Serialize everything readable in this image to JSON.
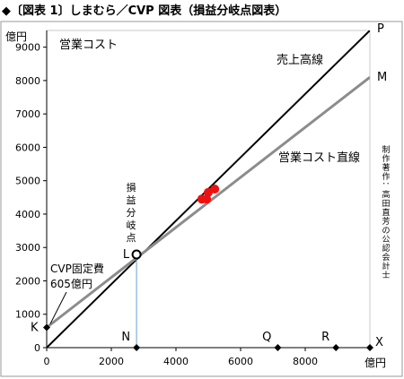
{
  "figure_title": "◆〔図表 1〕しまむら／CVP 図表（損益分岐点図表）",
  "chart_data": {
    "type": "line",
    "x_unit": "億円",
    "y_unit": "億円",
    "xlim": [
      0,
      10000
    ],
    "ylim": [
      0,
      9500
    ],
    "x_ticks": [
      0,
      2000,
      4000,
      6000,
      8000
    ],
    "y_ticks": [
      0,
      1000,
      2000,
      3000,
      4000,
      5000,
      6000,
      7000,
      8000,
      9000
    ],
    "grid": false,
    "series": [
      {
        "name": "売上高線",
        "color": "#000000",
        "x": [
          0,
          10000
        ],
        "y": [
          0,
          9500
        ]
      },
      {
        "name": "営業コスト直線",
        "color": "#8c8c8c",
        "x": [
          0,
          10000
        ],
        "y": [
          605,
          8100
        ]
      }
    ],
    "highlight_points": {
      "color": "#ee1111",
      "x": [
        4800,
        4950,
        5000,
        5200
      ],
      "y": [
        4450,
        4450,
        4650,
        4750
      ]
    },
    "break_even": {
      "x": 2780,
      "y": 2790,
      "label": "L",
      "vertical_label": "損益分岐点",
      "line_color": "#6a9fcf"
    },
    "x_markers": [
      {
        "label": "N",
        "x": 2780
      },
      {
        "label": "Q",
        "x": 7150
      },
      {
        "label": "R",
        "x": 8950
      }
    ],
    "point_labels": [
      {
        "label": "P",
        "x": 10000,
        "y": 9500
      },
      {
        "label": "M",
        "x": 10000,
        "y": 8100
      },
      {
        "label": "K",
        "x": 0,
        "y": 605
      },
      {
        "label": "X",
        "x": 10000,
        "y": 0
      }
    ],
    "annotations": {
      "operating_cost": "営業コスト",
      "sales_line": "売上高線",
      "cost_line": "営業コスト直線",
      "fixed_cost_line1": "CVP固定費",
      "fixed_cost_line2": "605億円",
      "credit": "制作著作：高田直芳の公認会計士"
    }
  }
}
